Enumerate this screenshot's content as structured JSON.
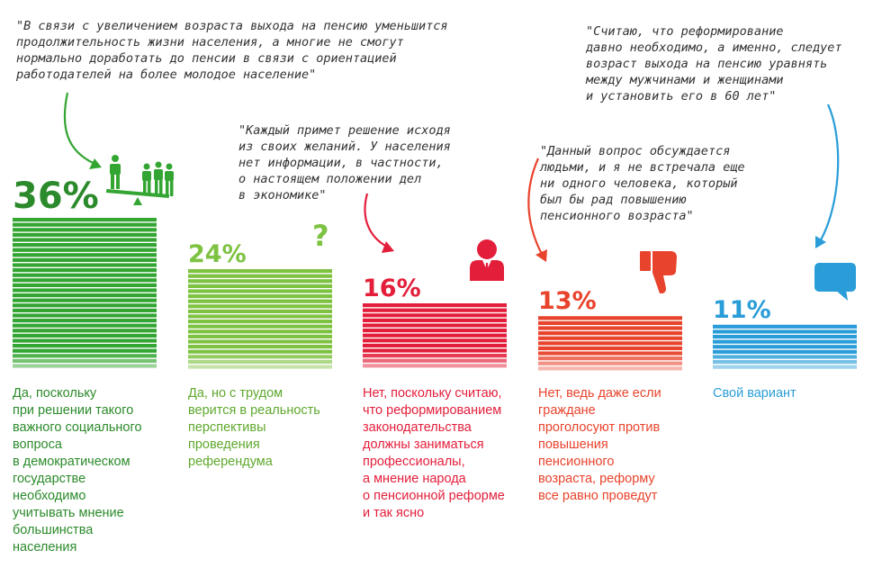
{
  "chart_data": {
    "type": "bar",
    "categories": [
      "Да, поскольку\nпри решении такого\nважного социального\nвопроса\nв демократическом\nгосударстве\nнеобходимо\nучитывать мнение\nбольшинства\nнаселения",
      "Да, но с трудом\nверится в реальность\nперспективы\nпроведения\nреферендума",
      "Нет, поскольку считаю,\nчто реформированием\nзаконодательства\nдолжны заниматься\nпрофессионалы,\nа мнение народа\nо пенсионной реформе\nи так ясно",
      "Нет, ведь даже если\nграждане\nпроголосуют против\nповышения\nпенсионного\nвозраста, реформу\nвсе равно проведут",
      "Свой вариант"
    ],
    "values": [
      36,
      24,
      16,
      13,
      11
    ],
    "value_labels": [
      "36%",
      "24%",
      "16%",
      "13%",
      "11%"
    ],
    "colors": [
      "#33a532",
      "#7ec242",
      "#e31e3a",
      "#e8432c",
      "#2a9dd8"
    ],
    "title": "",
    "xlabel": "",
    "ylabel": ""
  },
  "quotes": [
    "\"В связи с увеличением возраста выхода на пенсию уменьшится\nпродолжительность жизни населения, а многие не смогут\nнормально доработать до пенсии в связи с ориентацией\nработодателей на более молодое население\"",
    "\"Каждый примет решение исходя\nиз своих желаний. У населения\nнет информации, в частности,\nо настоящем положении дел\nв экономике\"",
    "\"Данный вопрос обсуждается\nлюдьми, и я не встречала еще\nни одного человека, который\nбыл бы рад повышению\nпенсионного возраста\"",
    "\"Считаю, что реформирование\nдавно необходимо, а именно, следует\nвозраст выхода на пенсию уравнять\nмежду мужчинами и женщинами\nи установить его в 60 лет\""
  ],
  "icons": [
    "people-scale-icon",
    "question-mark-icon",
    "businessman-icon",
    "thumbs-down-icon",
    "speech-bubble-icon"
  ]
}
